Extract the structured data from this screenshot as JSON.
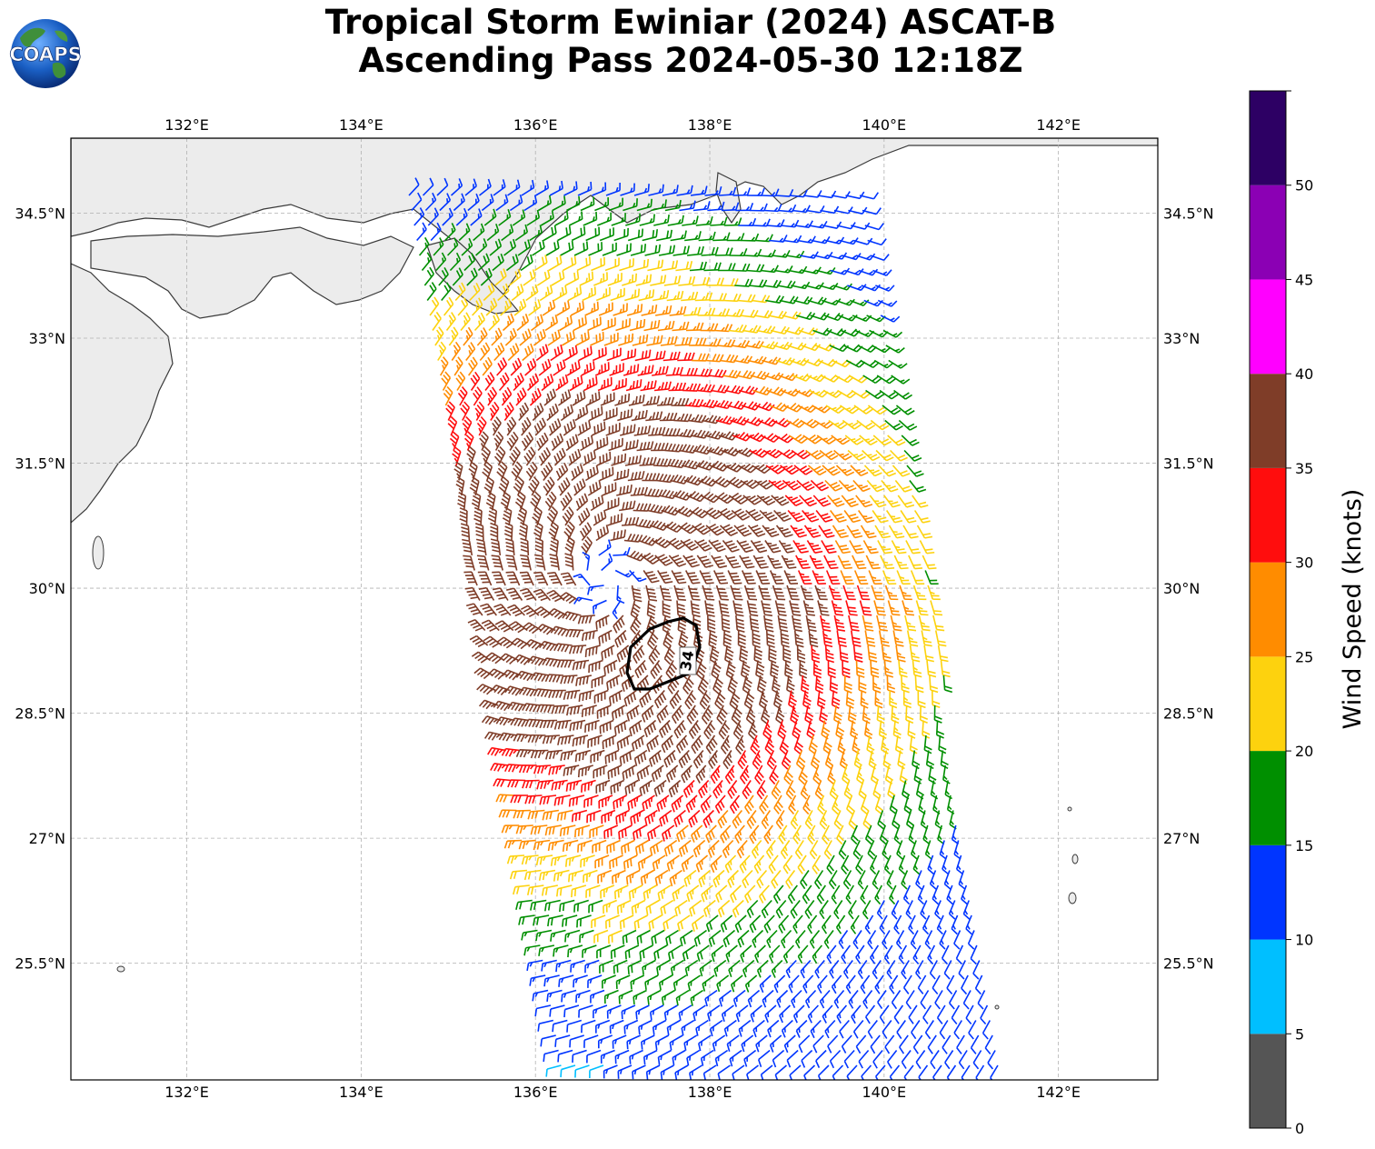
{
  "title_line1": "Tropical Storm Ewiniar (2024) ASCAT-B",
  "title_line2": "Ascending Pass 2024-05-30 12:18Z",
  "logo_text": "COAPS",
  "lon_ticks": [
    "132°E",
    "134°E",
    "136°E",
    "138°E",
    "140°E",
    "142°E"
  ],
  "lon_values": [
    132,
    134,
    136,
    138,
    140,
    142
  ],
  "lat_ticks": [
    "34.5°N",
    "33°N",
    "31.5°N",
    "30°N",
    "28.5°N",
    "27°N",
    "25.5°N"
  ],
  "lat_values": [
    34.5,
    33,
    31.5,
    30,
    28.5,
    27,
    25.5
  ],
  "extent": {
    "lon_min": 130.67,
    "lon_max": 143.14,
    "lat_min": 24.1,
    "lat_max": 35.4
  },
  "storm_center": {
    "lon": 136.8,
    "lat": 30.1
  },
  "contour_label": "34",
  "colorbar": {
    "label": "Wind Speed (knots)",
    "ticks": [
      "0",
      "5",
      "10",
      "15",
      "20",
      "25",
      "30",
      "35",
      "40",
      "45",
      "50"
    ],
    "bins": [
      {
        "min": 0,
        "max": 5,
        "color": "#555555"
      },
      {
        "min": 5,
        "max": 10,
        "color": "#00bfff"
      },
      {
        "min": 10,
        "max": 15,
        "color": "#0035ff"
      },
      {
        "min": 15,
        "max": 20,
        "color": "#008f00"
      },
      {
        "min": 20,
        "max": 25,
        "color": "#fdd20e"
      },
      {
        "min": 25,
        "max": 30,
        "color": "#ff8c00"
      },
      {
        "min": 30,
        "max": 35,
        "color": "#ff0d0d"
      },
      {
        "min": 35,
        "max": 40,
        "color": "#7f3d28"
      },
      {
        "min": 40,
        "max": 45,
        "color": "#ff00ff"
      },
      {
        "min": 45,
        "max": 50,
        "color": "#8b00b4"
      },
      {
        "min": 50,
        "max": 55,
        "color": "#2d0064"
      }
    ]
  },
  "colors": {
    "coast": "#3a3a3a",
    "grid": "#b0b0b0",
    "contour": "#000000",
    "land": "#ececec"
  }
}
